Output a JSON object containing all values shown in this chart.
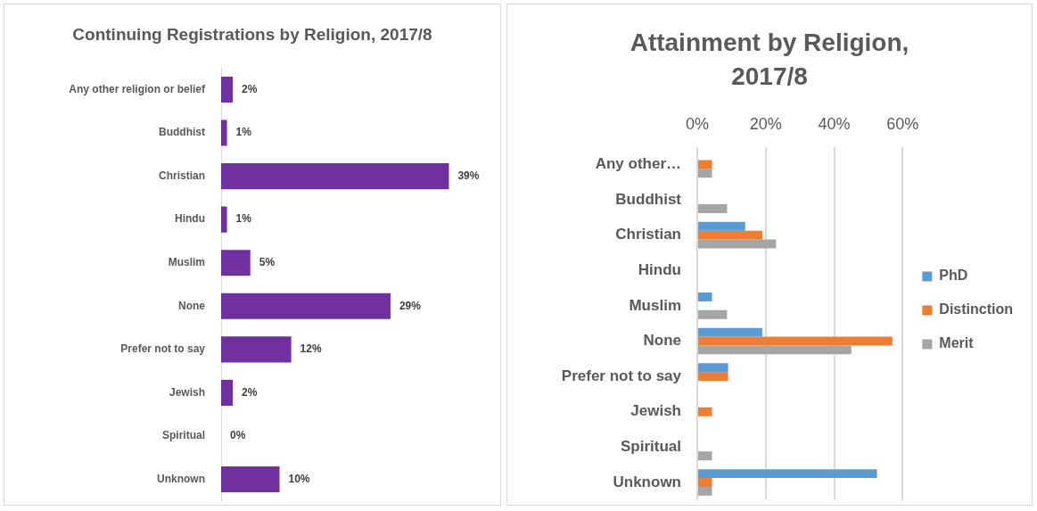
{
  "chart_data": [
    {
      "type": "bar",
      "orientation": "horizontal",
      "title": "Continuing Registrations by Religion, 2017/8",
      "categories": [
        "Any other religion or belief",
        "Buddhist",
        "Christian",
        "Hindu",
        "Muslim",
        "None",
        "Prefer not to say",
        "Jewish",
        "Spiritual",
        "Unknown"
      ],
      "values": [
        2,
        1,
        39,
        1,
        5,
        29,
        12,
        2,
        0,
        10
      ],
      "value_labels": [
        "2%",
        "1%",
        "39%",
        "1%",
        "5%",
        "29%",
        "12%",
        "2%",
        "0%",
        "10%"
      ],
      "color": "#7030a0",
      "tick_labels": "y",
      "grid": false
    },
    {
      "type": "bar",
      "orientation": "horizontal",
      "title": "Attainment by Religion, 2017/8",
      "categories": [
        "Any other…",
        "Buddhist",
        "Christian",
        "Hindu",
        "Muslim",
        "None",
        "Prefer not to say",
        "Jewish",
        "Spiritual",
        "Unknown"
      ],
      "series": [
        {
          "name": "PhD",
          "color": "#5b9bd5",
          "values": [
            null,
            null,
            14,
            null,
            4.3,
            19,
            9,
            null,
            null,
            52.5
          ]
        },
        {
          "name": "Distinction",
          "color": "#ed7d31",
          "values": [
            4.3,
            null,
            19,
            null,
            null,
            57,
            9,
            4.3,
            null,
            4.3
          ]
        },
        {
          "name": "Merit",
          "color": "#a5a5a5",
          "values": [
            4.3,
            8.7,
            23,
            null,
            8.7,
            45,
            null,
            null,
            4.3,
            4.3
          ]
        }
      ],
      "xlim": [
        0,
        60
      ],
      "xticks": [
        {
          "value": 0,
          "label": "0%"
        },
        {
          "value": 20,
          "label": "20%"
        },
        {
          "value": 40,
          "label": "40%"
        },
        {
          "value": 60,
          "label": "60%"
        }
      ],
      "grid": "x",
      "legend": "right"
    }
  ]
}
